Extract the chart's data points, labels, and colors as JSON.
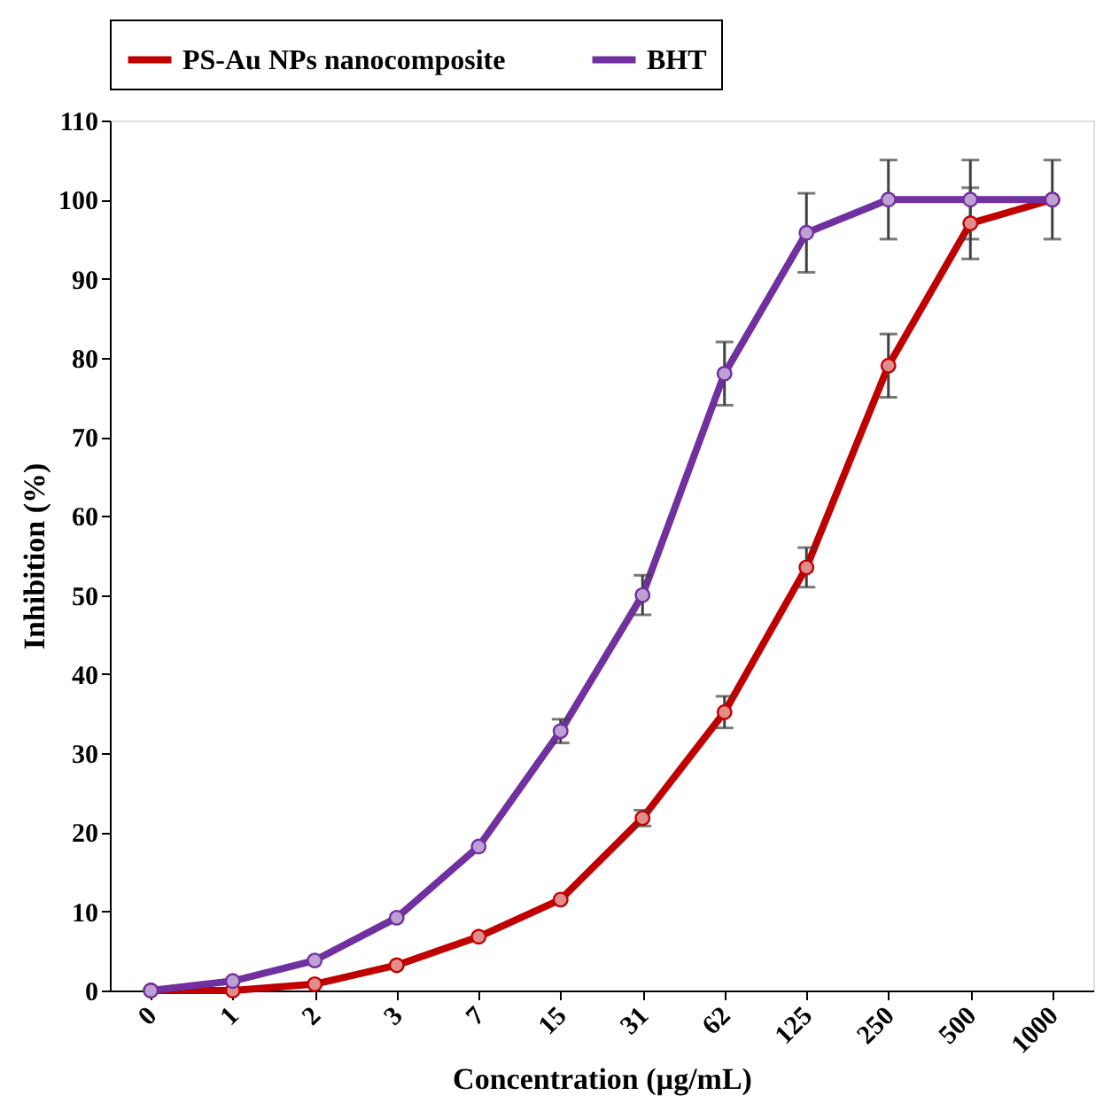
{
  "chart_data": {
    "type": "line",
    "xlabel": "Concentration (µg/mL)",
    "ylabel": "Inhibition (%)",
    "categories": [
      "0",
      "1",
      "2",
      "3",
      "7",
      "15",
      "31",
      "62",
      "125",
      "250",
      "500",
      "1000"
    ],
    "series": [
      {
        "name": "PS-Au NPs nanocomposite",
        "color": "#c00000",
        "values": [
          0,
          0,
          0.8,
          3.2,
          6.8,
          11.5,
          21.8,
          35.2,
          53.5,
          79,
          97,
          100
        ],
        "errors": [
          null,
          null,
          null,
          null,
          null,
          null,
          1,
          2,
          2.5,
          4,
          4.5,
          null
        ]
      },
      {
        "name": "BHT",
        "color": "#7030a0",
        "values": [
          0,
          1.2,
          3.8,
          9.2,
          18.2,
          32.8,
          50,
          78,
          95.8,
          100,
          100,
          100
        ],
        "errors": [
          null,
          null,
          null,
          null,
          null,
          1.5,
          2.5,
          4,
          5,
          5,
          5,
          5
        ]
      }
    ],
    "ylim": [
      0,
      110
    ],
    "yticks": [
      0,
      10,
      20,
      30,
      40,
      50,
      60,
      70,
      80,
      90,
      100,
      110
    ],
    "grid": false,
    "legend": "top",
    "marker": "circle",
    "line_style": "solid"
  }
}
